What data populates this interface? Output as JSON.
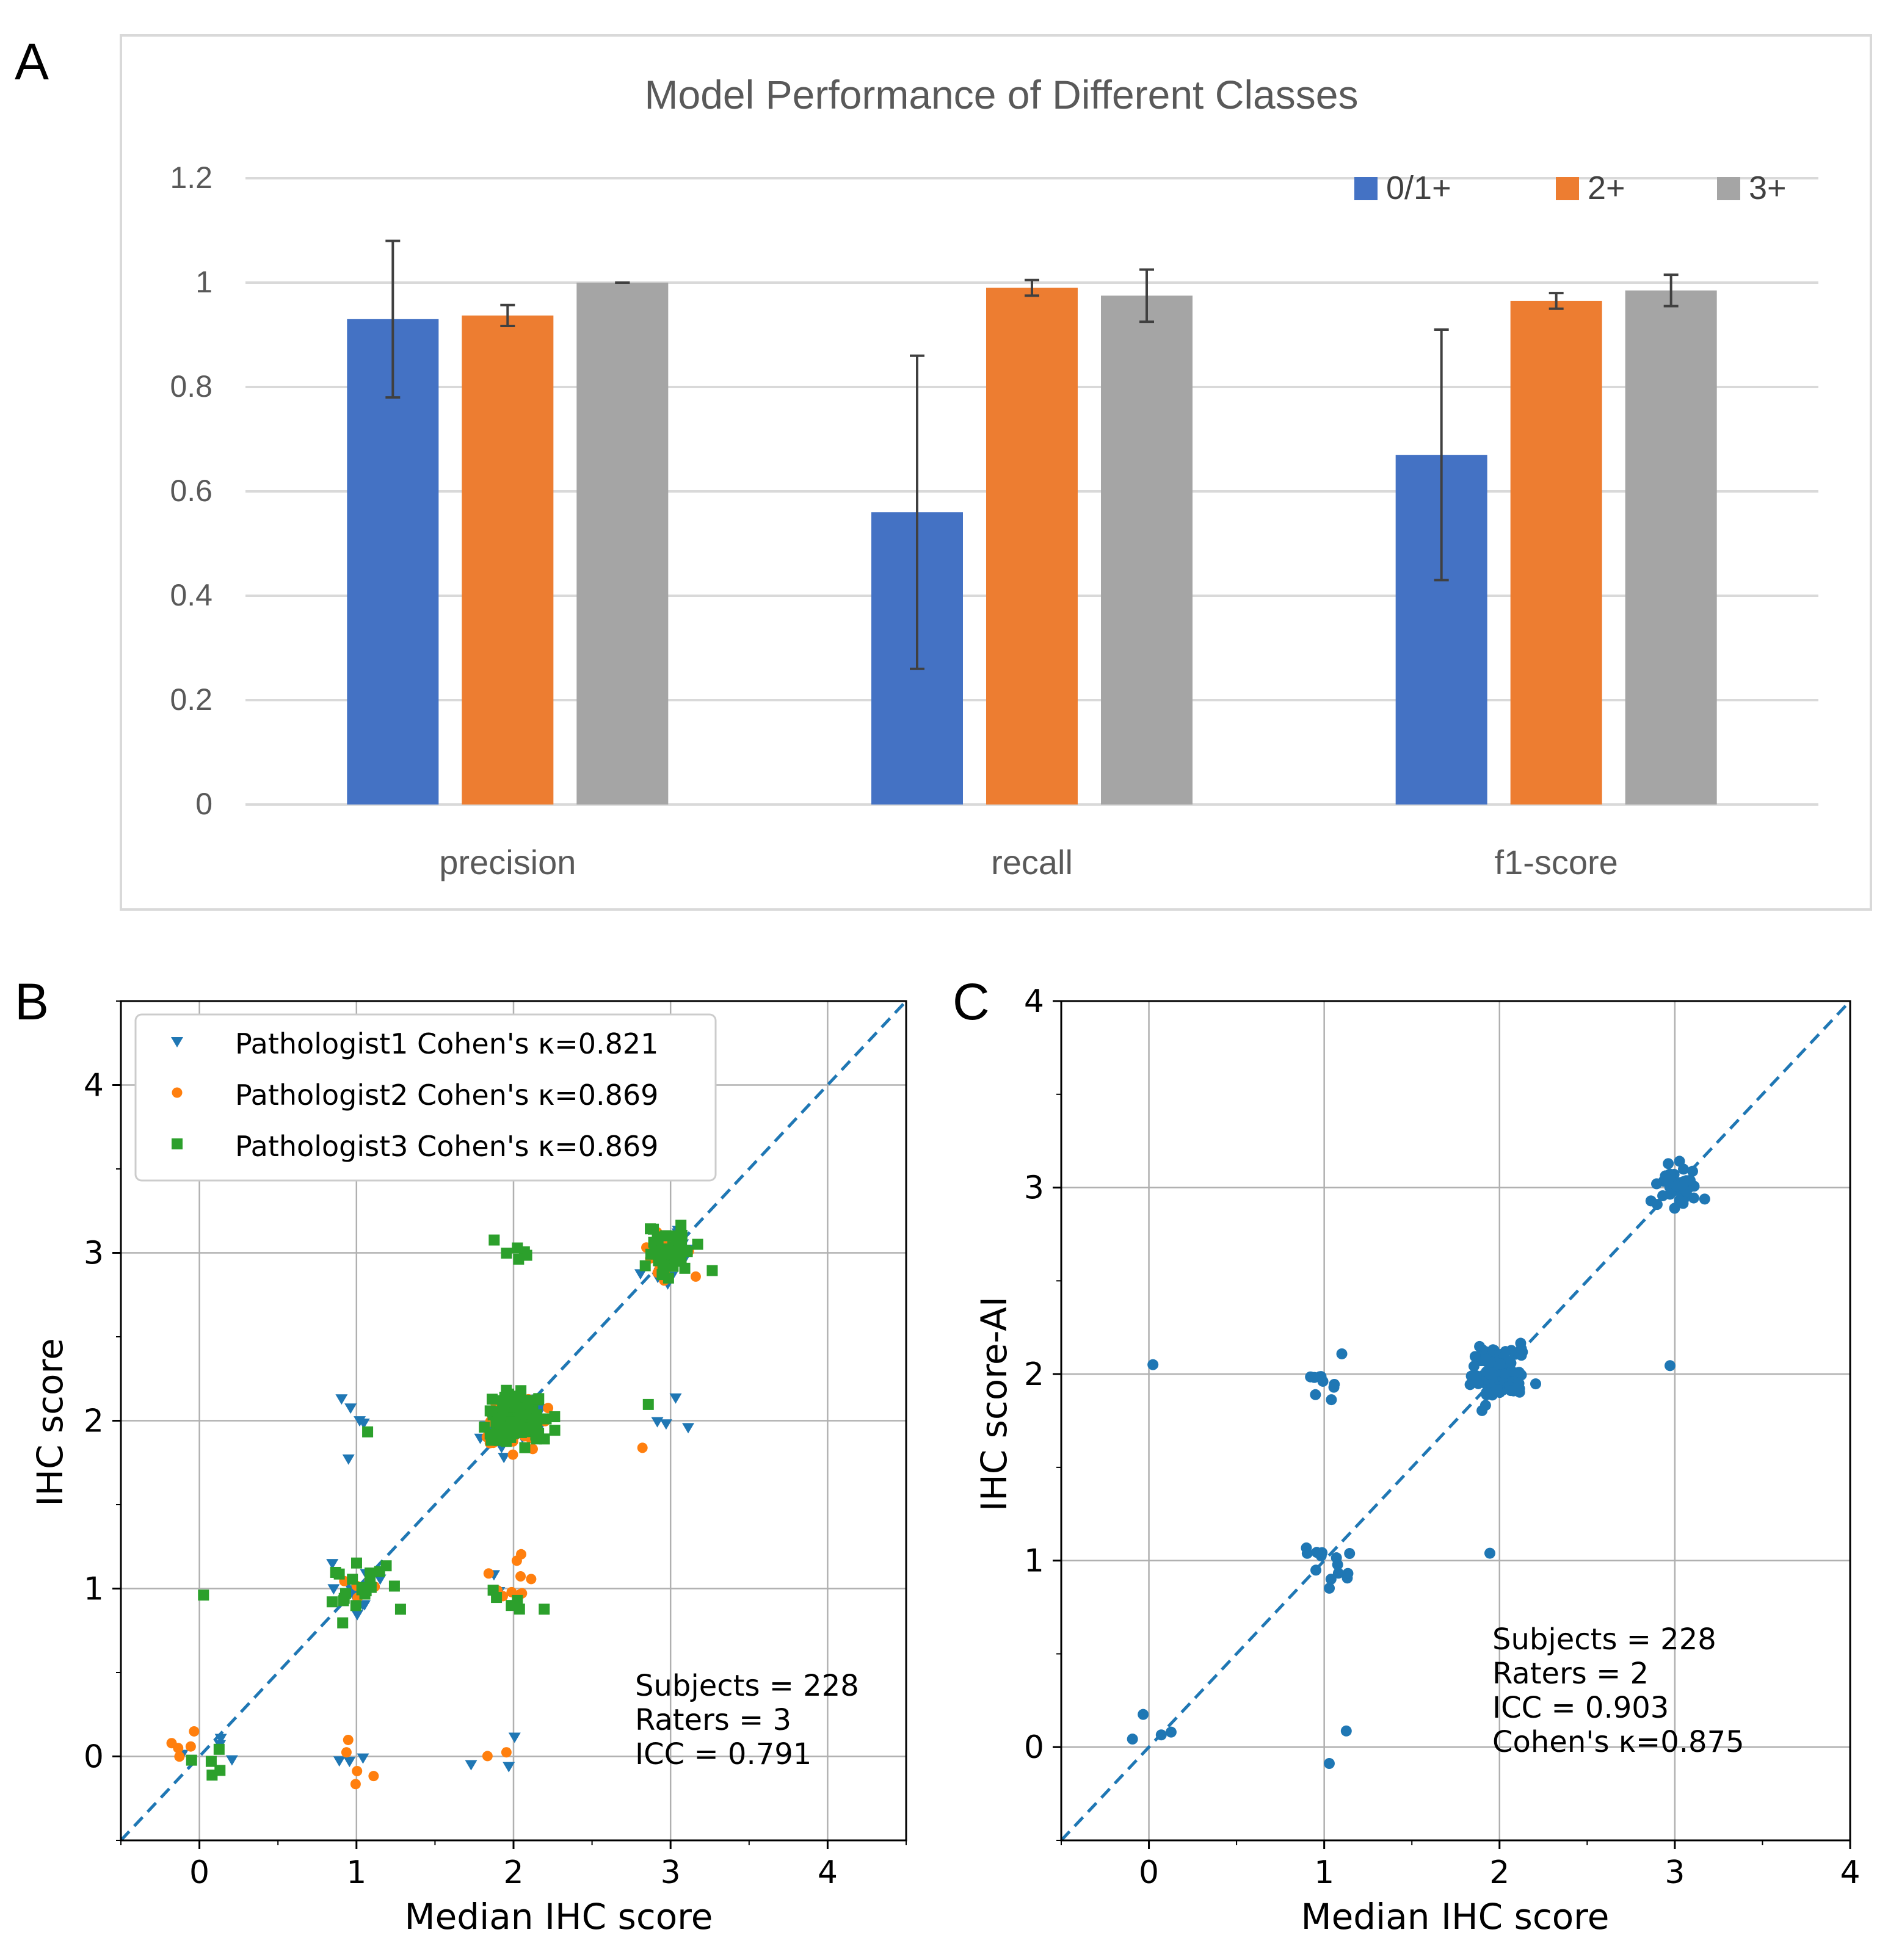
{
  "chart_data": [
    {
      "panel": "A",
      "type": "bar",
      "title": "Model Performance of Different Classes",
      "categories": [
        "precision",
        "recall",
        "f1-score"
      ],
      "series": [
        {
          "name": "0/1+",
          "color": "#4472C4",
          "values": [
            0.93,
            0.56,
            0.67
          ],
          "errors": [
            0.15,
            0.3,
            0.24
          ]
        },
        {
          "name": "2+",
          "color": "#ED7D31",
          "values": [
            0.937,
            0.99,
            0.965
          ],
          "errors": [
            0.02,
            0.015,
            0.015
          ]
        },
        {
          "name": "3+",
          "color": "#A5A5A5",
          "values": [
            1.0,
            0.975,
            0.985
          ],
          "errors": [
            0.0,
            0.05,
            0.03
          ]
        }
      ],
      "ylim": [
        0,
        1.2
      ],
      "yticks": [
        "0",
        "0.2",
        "0.4",
        "0.6",
        "0.8",
        "1",
        "1.2"
      ],
      "legend": "top-right"
    },
    {
      "panel": "B",
      "type": "scatter",
      "xlabel": "Median IHC score",
      "ylabel": "IHC score",
      "xlim": [
        -0.5,
        4.5
      ],
      "ylim": [
        -0.5,
        4.5
      ],
      "xticks": [
        "0",
        "1",
        "2",
        "3",
        "4"
      ],
      "yticks": [
        "0",
        "1",
        "2",
        "3",
        "4"
      ],
      "legend_entries": [
        {
          "name": "Pathologist1 Cohen's κ=0.821",
          "color": "#1f77b4",
          "marker": "triangle-down"
        },
        {
          "name": "Pathologist2 Cohen's κ=0.869",
          "color": "#ff7f0e",
          "marker": "circle"
        },
        {
          "name": "Pathologist3 Cohen's κ=0.869",
          "color": "#2ca02c",
          "marker": "square"
        }
      ],
      "stats": [
        "Subjects = 228",
        "Raters = 3",
        "ICC = 0.791"
      ],
      "clusters": [
        {
          "x": 0,
          "y": 0,
          "n": [
            4,
            5,
            5
          ]
        },
        {
          "x": 1,
          "y": 1,
          "n": [
            12,
            8,
            22
          ]
        },
        {
          "x": 1,
          "y": 2,
          "n": [
            5,
            0,
            1
          ]
        },
        {
          "x": 1,
          "y": 0,
          "n": [
            3,
            5,
            0
          ]
        },
        {
          "x": 2,
          "y": 2,
          "n": [
            60,
            60,
            120
          ]
        },
        {
          "x": 2,
          "y": 1,
          "n": [
            2,
            10,
            6
          ]
        },
        {
          "x": 2,
          "y": 3,
          "n": [
            0,
            0,
            6
          ]
        },
        {
          "x": 2,
          "y": 0,
          "n": [
            3,
            2,
            0
          ]
        },
        {
          "x": 3,
          "y": 3,
          "n": [
            25,
            20,
            40
          ]
        },
        {
          "x": 3,
          "y": 2,
          "n": [
            4,
            1,
            1
          ]
        },
        {
          "x": 0,
          "y": 1,
          "n": [
            0,
            0,
            1
          ]
        }
      ],
      "reference_line": "y = x"
    },
    {
      "panel": "C",
      "type": "scatter",
      "xlabel": "Median IHC score",
      "ylabel": "IHC score-AI",
      "xlim": [
        -0.5,
        4
      ],
      "ylim": [
        -0.5,
        4
      ],
      "xticks": [
        "0",
        "1",
        "2",
        "3",
        "4"
      ],
      "yticks": [
        "0",
        "1",
        "2",
        "3",
        "4"
      ],
      "stats": [
        "Subjects = 228",
        "Raters = 2",
        "ICC = 0.903",
        "Cohen's κ=0.875"
      ],
      "clusters": [
        {
          "x": 0,
          "y": 0,
          "n": 4
        },
        {
          "x": 0,
          "y": 2,
          "n": 1
        },
        {
          "x": 1,
          "y": 1,
          "n": 14
        },
        {
          "x": 1,
          "y": 2,
          "n": 10
        },
        {
          "x": 1,
          "y": 0,
          "n": 2
        },
        {
          "x": 2,
          "y": 2,
          "n": 130
        },
        {
          "x": 2,
          "y": 1,
          "n": 1
        },
        {
          "x": 3,
          "y": 3,
          "n": 45
        },
        {
          "x": 3,
          "y": 2,
          "n": 1
        }
      ],
      "reference_line": "y = x"
    }
  ],
  "panel_labels": [
    "A",
    "B",
    "C"
  ]
}
